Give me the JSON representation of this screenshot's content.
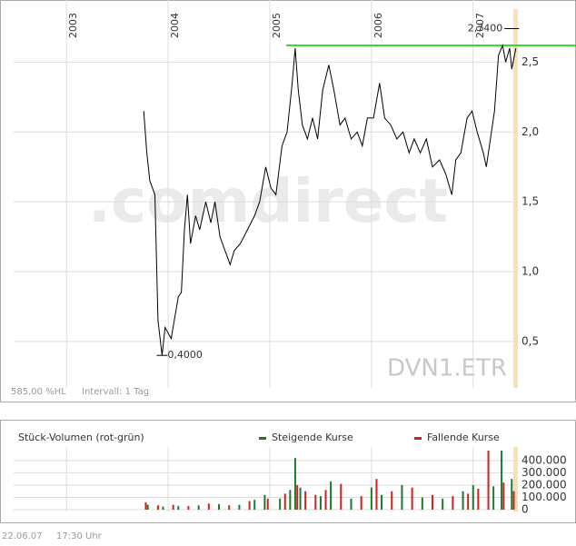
{
  "chart_data": [
    {
      "type": "line",
      "ticker": "DVN1.ETR",
      "watermark": ".comdirect",
      "range_note": "585,00 %HL",
      "interval": "Intervall: 1 Tag",
      "color": "#000000",
      "x": [
        2003.76,
        2003.79,
        2003.82,
        2003.87,
        2003.9,
        2003.94,
        2003.97,
        2004.03,
        2004.06,
        2004.1,
        2004.13,
        2004.16,
        2004.19,
        2004.22,
        2004.27,
        2004.31,
        2004.37,
        2004.42,
        2004.46,
        2004.51,
        2004.56,
        2004.61,
        2004.65,
        2004.71,
        2004.78,
        2004.85,
        2004.9,
        2004.96,
        2005.01,
        2005.06,
        2005.12,
        2005.17,
        2005.22,
        2005.25,
        2005.28,
        2005.32,
        2005.37,
        2005.42,
        2005.47,
        2005.52,
        2005.58,
        2005.63,
        2005.69,
        2005.74,
        2005.8,
        2005.86,
        2005.91,
        2005.96,
        2006.02,
        2006.08,
        2006.13,
        2006.19,
        2006.25,
        2006.31,
        2006.37,
        2006.42,
        2006.48,
        2006.54,
        2006.6,
        2006.67,
        2006.73,
        2006.79,
        2006.83,
        2006.88,
        2006.94,
        2006.99,
        2007.04,
        2007.1,
        2007.13,
        2007.17,
        2007.21,
        2007.25,
        2007.29,
        2007.32,
        2007.36,
        2007.38,
        2007.42
      ],
      "values": [
        2.15,
        1.85,
        1.65,
        1.55,
        0.65,
        0.4,
        0.6,
        0.52,
        0.65,
        0.82,
        0.85,
        1.3,
        1.55,
        1.2,
        1.4,
        1.3,
        1.5,
        1.35,
        1.5,
        1.25,
        1.15,
        1.05,
        1.15,
        1.2,
        1.3,
        1.4,
        1.5,
        1.75,
        1.6,
        1.55,
        1.9,
        2.0,
        2.35,
        2.6,
        2.3,
        2.05,
        1.95,
        2.1,
        1.95,
        2.3,
        2.48,
        2.3,
        2.05,
        2.1,
        1.95,
        2.0,
        1.9,
        2.1,
        2.1,
        2.35,
        2.1,
        2.05,
        1.95,
        2.0,
        1.85,
        1.95,
        1.85,
        1.95,
        1.75,
        1.8,
        1.7,
        1.55,
        1.8,
        1.85,
        2.1,
        2.15,
        2.0,
        1.85,
        1.75,
        1.95,
        2.15,
        2.55,
        2.62,
        2.5,
        2.6,
        2.45,
        2.6
      ],
      "xlim": [
        2002.48,
        2007.44
      ],
      "xticks": [
        2003,
        2004,
        2005,
        2006,
        2007
      ],
      "ylim": [
        0.18,
        2.88
      ],
      "yticks": [
        {
          "value": 0.5,
          "label": "0,5"
        },
        {
          "value": 1.0,
          "label": "1,0"
        },
        {
          "value": 1.5,
          "label": "1,5"
        },
        {
          "value": 2.0,
          "label": "2,0"
        },
        {
          "value": 2.5,
          "label": "2,5"
        }
      ],
      "grid": true,
      "max_marker": {
        "value": 2.74,
        "label": "2,7400",
        "x": 2007.38
      },
      "min_marker": {
        "value": 0.4,
        "label": "0,4000",
        "x": 2003.94
      },
      "reference_line": {
        "value": 2.62,
        "color": "#33dd33"
      }
    },
    {
      "type": "bar",
      "title": "Stück-Volumen (rot-grün)",
      "xlim": [
        2002.48,
        2007.44
      ],
      "xticks": [
        2003,
        2004,
        2005,
        2006,
        2007
      ],
      "ylim": [
        0,
        510000
      ],
      "yticks": [
        0,
        {
          "value": 100000,
          "label": "100.000"
        },
        {
          "value": 200000,
          "label": "200.000"
        },
        {
          "value": 300000,
          "label": "300.000"
        },
        {
          "value": 400000,
          "label": "400.000"
        }
      ],
      "series": [
        {
          "name": "Steigende Kurse",
          "color": "#1a7a2e",
          "x": [
            2003.8,
            2003.95,
            2004.1,
            2004.3,
            2004.5,
            2004.7,
            2004.85,
            2004.95,
            2005.1,
            2005.2,
            2005.25,
            2005.3,
            2005.5,
            2005.6,
            2005.8,
            2006.0,
            2006.1,
            2006.3,
            2006.5,
            2006.7,
            2006.9,
            2007.0,
            2007.2,
            2007.28,
            2007.38
          ],
          "values": [
            40000,
            25000,
            30000,
            35000,
            45000,
            40000,
            80000,
            120000,
            90000,
            160000,
            420000,
            180000,
            110000,
            230000,
            90000,
            180000,
            120000,
            200000,
            100000,
            90000,
            150000,
            200000,
            190000,
            480000,
            250000
          ]
        },
        {
          "name": "Fallende Kurse",
          "color": "#cc2222",
          "x": [
            2003.78,
            2003.9,
            2004.05,
            2004.2,
            2004.4,
            2004.6,
            2004.8,
            2004.98,
            2005.15,
            2005.27,
            2005.35,
            2005.45,
            2005.55,
            2005.7,
            2005.9,
            2006.05,
            2006.2,
            2006.4,
            2006.6,
            2006.8,
            2006.95,
            2007.05,
            2007.15,
            2007.3,
            2007.4
          ],
          "values": [
            60000,
            35000,
            40000,
            30000,
            50000,
            35000,
            70000,
            90000,
            130000,
            200000,
            150000,
            120000,
            160000,
            210000,
            110000,
            250000,
            150000,
            180000,
            120000,
            110000,
            130000,
            170000,
            480000,
            220000,
            150000
          ]
        }
      ]
    }
  ],
  "footer": {
    "date": "22.06.07",
    "time": "17:30 Uhr"
  }
}
